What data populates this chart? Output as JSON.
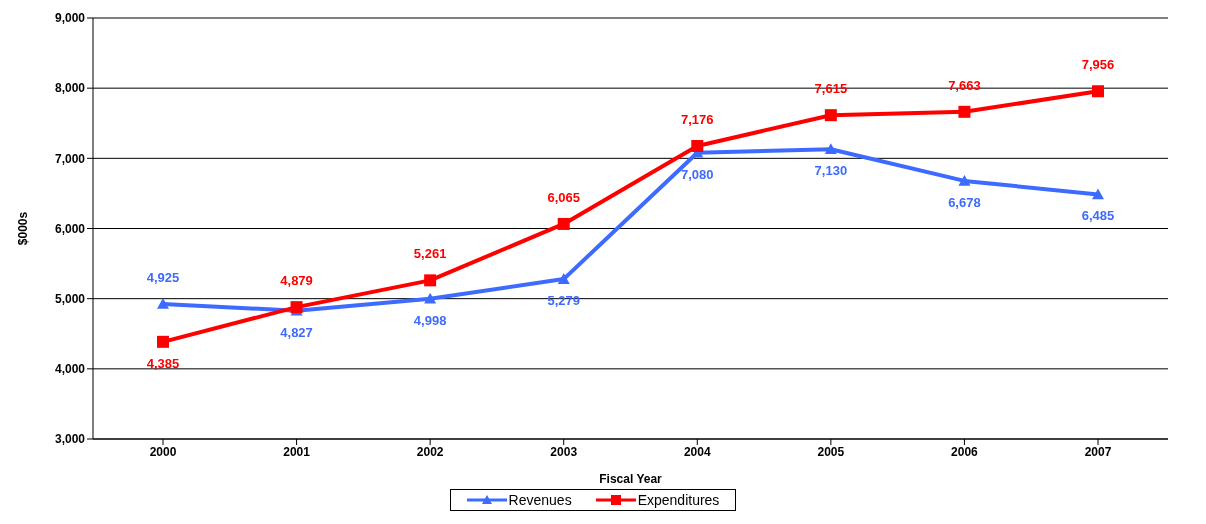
{
  "chart_data": {
    "type": "line",
    "xlabel": "Fiscal Year",
    "ylabel": "$000s",
    "categories": [
      "2000",
      "2001",
      "2002",
      "2003",
      "2004",
      "2005",
      "2006",
      "2007"
    ],
    "series": [
      {
        "name": "Revenues",
        "color": "#3d6bff",
        "marker": "triangle",
        "values": [
          4925,
          4827,
          4998,
          5279,
          7080,
          7130,
          6678,
          6485
        ],
        "value_labels": [
          "4,925",
          "4,827",
          "4,998",
          "5,279",
          "7,080",
          "7,130",
          "6,678",
          "6,485"
        ]
      },
      {
        "name": "Expenditures",
        "color": "#ff0000",
        "marker": "square",
        "values": [
          4385,
          4879,
          5261,
          6065,
          7176,
          7615,
          7663,
          7956
        ],
        "value_labels": [
          "4,385",
          "4,879",
          "5,261",
          "6,065",
          "7,176",
          "7,615",
          "7,663",
          "7,956"
        ]
      }
    ],
    "ylim": [
      3000,
      9000
    ],
    "yticks": [
      {
        "value": 3000,
        "label": "3,000"
      },
      {
        "value": 4000,
        "label": "4,000"
      },
      {
        "value": 5000,
        "label": "5,000"
      },
      {
        "value": 6000,
        "label": "6,000"
      },
      {
        "value": 7000,
        "label": "7,000"
      },
      {
        "value": 8000,
        "label": "8,000"
      },
      {
        "value": 9000,
        "label": "9,000"
      }
    ],
    "grid": "y",
    "legend": "bottom"
  }
}
